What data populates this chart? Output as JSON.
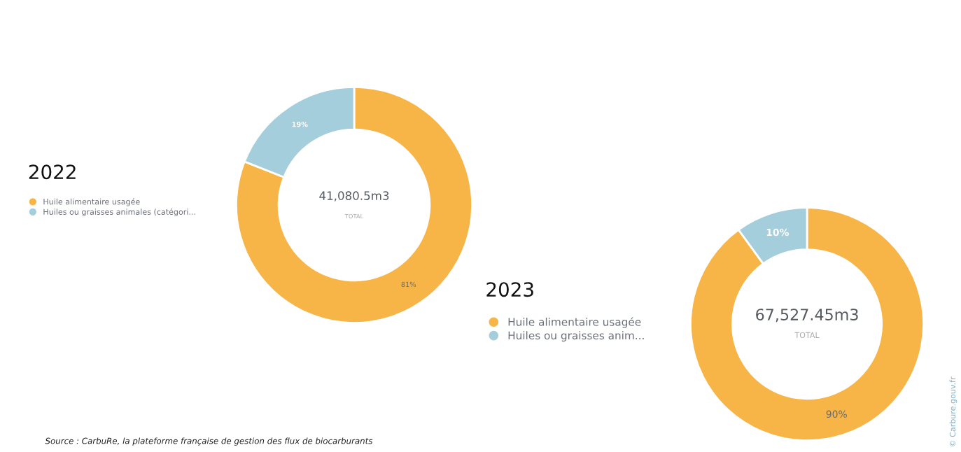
{
  "chart_data": [
    {
      "type": "donut",
      "title": "2022",
      "categories": [
        "Huile alimentaire usagée",
        "Huiles ou graisses animales (catégori..."
      ],
      "values": [
        81,
        19
      ],
      "value_labels": [
        "81%",
        "19%"
      ],
      "colors": [
        "#f7b548",
        "#a5cedc"
      ],
      "legend": "left",
      "annotations": [
        "41,080.5m3",
        "TOTAL",
        "Source : CarbuRe, la plateforme française de gestion des flux de biocarburants"
      ]
    },
    {
      "type": "donut",
      "title": "2023",
      "categories": [
        "Huile alimentaire usagée",
        "Huiles ou graisses anim..."
      ],
      "values": [
        90,
        10
      ],
      "value_labels": [
        "90%",
        "10%"
      ],
      "colors": [
        "#f7b548",
        "#a5cedc"
      ],
      "legend": "left",
      "annotations": [
        "67,527.45m3",
        "TOTAL",
        "© Carbure.gouv.fr"
      ]
    }
  ]
}
